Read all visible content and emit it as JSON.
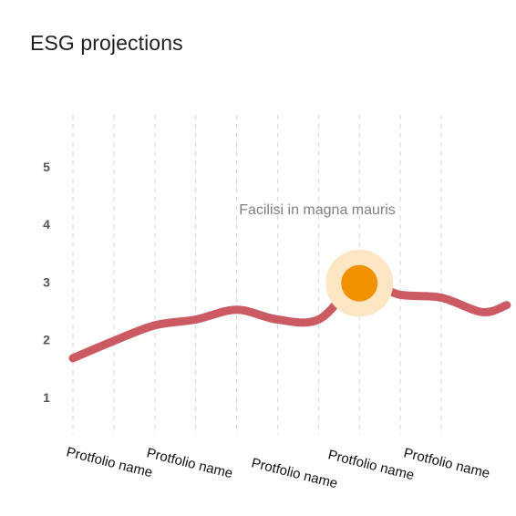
{
  "chart_data": {
    "type": "line",
    "title": "ESG projections",
    "categories": [
      "Protfolio name",
      "Protfolio name",
      "Protfolio name",
      "Protfolio name",
      "Protfolio name"
    ],
    "y_ticks": [
      "1",
      "2",
      "3",
      "4",
      "5"
    ],
    "ylim": [
      0.35,
      5.9
    ],
    "grid": "vertical dashed",
    "series": [
      {
        "color": "#cc5a63",
        "points": [
          [
            0.0,
            1.68
          ],
          [
            0.5,
            1.98
          ],
          [
            1.0,
            2.25
          ],
          [
            1.5,
            2.35
          ],
          [
            2.0,
            2.52
          ],
          [
            2.5,
            2.35
          ],
          [
            3.0,
            2.35
          ],
          [
            3.5,
            2.98
          ],
          [
            4.0,
            2.78
          ],
          [
            4.5,
            2.73
          ],
          [
            5.0,
            2.48
          ],
          [
            5.3,
            2.6
          ]
        ]
      }
    ],
    "highlight": {
      "x": 3.5,
      "y": 2.98,
      "label": "Facilisi in magna mauris",
      "color": "#f39200",
      "halo_color": "#fde6c4"
    }
  }
}
